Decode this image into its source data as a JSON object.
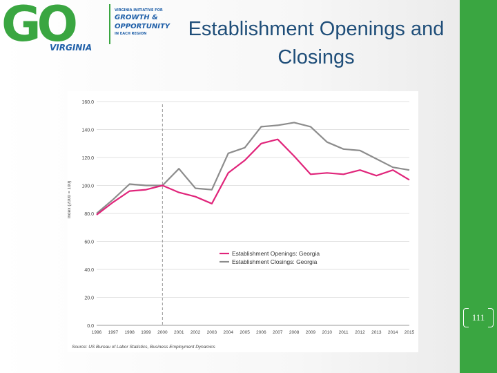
{
  "logo": {
    "mark_text": "GO",
    "sub_text": "VIRGINIA",
    "line1": "VIRGINIA INITIATIVE FOR",
    "line2": "GROWTH &",
    "line3": "OPPORTUNITY",
    "line4": "IN EACH REGION"
  },
  "slide": {
    "title_line1": "Establishment Openings and",
    "title_line2": "Closings",
    "page_number": "111"
  },
  "colors": {
    "openings": "#e0247a",
    "closings": "#8c8c8c",
    "accent_green": "#3aa641",
    "title_blue": "#1f4e79"
  },
  "chart_data": {
    "type": "line",
    "title": "",
    "xlabel": "",
    "ylabel": "Index (2000 = 100)",
    "categories": [
      "1996",
      "1997",
      "1998",
      "1999",
      "2000",
      "2001",
      "2002",
      "2003",
      "2004",
      "2005",
      "2006",
      "2007",
      "2008",
      "2009",
      "2010",
      "2011",
      "2012",
      "2013",
      "2014",
      "2015"
    ],
    "ylim": [
      0,
      160
    ],
    "yticks": [
      "0.0",
      "20.0",
      "40.0",
      "60.0",
      "80.0",
      "100.0",
      "120.0",
      "140.0",
      "160.0"
    ],
    "reference_x": "2000",
    "series": [
      {
        "name": "Establishment Openings: Georgia",
        "values": [
          79,
          88,
          96,
          97,
          100,
          95,
          92,
          87,
          109,
          118,
          130,
          133,
          121,
          108,
          109,
          108,
          111,
          107,
          111,
          104
        ]
      },
      {
        "name": "Establishment Closings: Georgia",
        "values": [
          80,
          90,
          101,
          100,
          100,
          112,
          98,
          97,
          123,
          127,
          142,
          143,
          145,
          142,
          131,
          126,
          125,
          119,
          113,
          111
        ]
      }
    ],
    "legend_position": "inside-bottom-center",
    "source": "Source: US Bureau of Labor Statistics, Business Employment Dynamics"
  }
}
